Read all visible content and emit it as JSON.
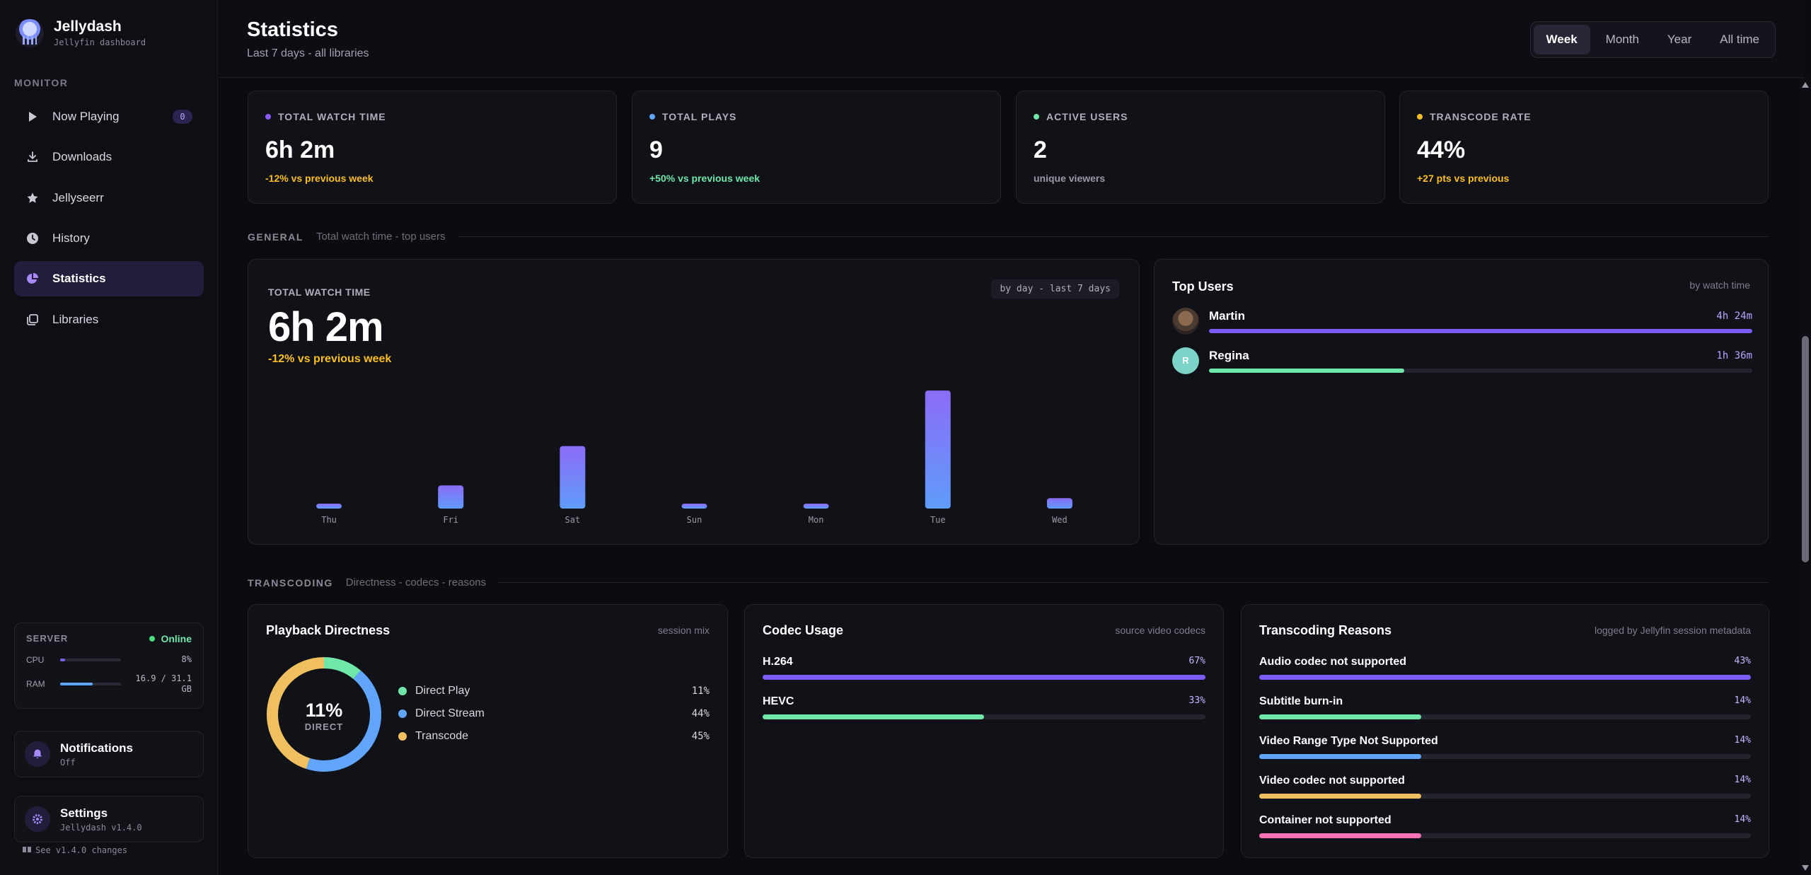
{
  "sidebar": {
    "brand_title": "Jellydash",
    "brand_sub": "Jellyfin dashboard",
    "section_label": "MONITOR",
    "items": [
      {
        "label": "Now Playing",
        "icon": "play-icon",
        "badge": "0"
      },
      {
        "label": "Downloads",
        "icon": "download-icon"
      },
      {
        "label": "Jellyseerr",
        "icon": "star-icon"
      },
      {
        "label": "History",
        "icon": "clock-icon"
      },
      {
        "label": "Statistics",
        "icon": "pie-chart-icon",
        "active": true
      },
      {
        "label": "Libraries",
        "icon": "library-icon"
      }
    ],
    "server": {
      "label": "SERVER",
      "status": "Online",
      "cpu_label": "CPU",
      "cpu_value": "8%",
      "cpu_fraction": 0.08,
      "ram_label": "RAM",
      "ram_value": "16.9 / 31.1 GB",
      "ram_fraction": 0.54
    },
    "notifications": {
      "title": "Notifications",
      "sub": "Off"
    },
    "settings": {
      "title": "Settings",
      "sub": "Jellydash v1.4.0"
    },
    "changes_link": "See v1.4.0 changes"
  },
  "header": {
    "title": "Statistics",
    "subtitle": "Last 7 days - all libraries",
    "ranges": [
      "Week",
      "Month",
      "Year",
      "All time"
    ],
    "active_range": "Week"
  },
  "stats": [
    {
      "label": "TOTAL WATCH TIME",
      "value": "6h 2m",
      "sub": "-12% vs previous week",
      "color": "#8b5cf6",
      "sub_color": "#fbbf24"
    },
    {
      "label": "TOTAL PLAYS",
      "value": "9",
      "sub": "+50% vs previous week",
      "color": "#60a5fa",
      "sub_color": "#6ee7a8"
    },
    {
      "label": "ACTIVE USERS",
      "value": "2",
      "sub": "unique viewers",
      "color": "#6ee7a8",
      "sub_color": "#9a9aa6"
    },
    {
      "label": "TRANSCODE RATE",
      "value": "44%",
      "sub": "+27 pts vs previous",
      "color": "#fbbf24",
      "sub_color": "#fbbf24"
    }
  ],
  "general": {
    "title": "GENERAL",
    "desc": "Total watch time - top users",
    "chart_label": "TOTAL WATCH TIME",
    "chip": "by day - last 7 days",
    "big": "6h 2m",
    "delta": "-12% vs previous week"
  },
  "chart_data": {
    "type": "bar",
    "title": "TOTAL WATCH TIME",
    "categories": [
      "Thu",
      "Fri",
      "Sat",
      "Sun",
      "Mon",
      "Tue",
      "Wed"
    ],
    "values": [
      4,
      20,
      54,
      4,
      4,
      102,
      9
    ],
    "ylim": [
      0,
      110
    ]
  },
  "top_users": {
    "title": "Top Users",
    "note": "by watch time",
    "users": [
      {
        "name": "Martin",
        "time": "4h 24m",
        "fraction": 1.0,
        "color": "#7c5cf6",
        "initial": ""
      },
      {
        "name": "Regina",
        "time": "1h 36m",
        "fraction": 0.36,
        "color": "#6ee7a8",
        "initial": "R"
      }
    ]
  },
  "transcoding": {
    "title": "TRANSCODING",
    "desc": "Directness - codecs - reasons"
  },
  "directness": {
    "title": "Playback Directness",
    "note": "session mix",
    "center_value": "11%",
    "center_label": "DIRECT",
    "items": [
      {
        "label": "Direct Play",
        "pct": "11%",
        "value": 11,
        "color": "#6ee7a8"
      },
      {
        "label": "Direct Stream",
        "pct": "44%",
        "value": 44,
        "color": "#60a5fa"
      },
      {
        "label": "Transcode",
        "pct": "45%",
        "value": 45,
        "color": "#f0c060"
      }
    ]
  },
  "codec": {
    "title": "Codec Usage",
    "note": "source video codecs",
    "items": [
      {
        "label": "H.264",
        "pct": "67%",
        "fraction": 1.0,
        "color": "#7c5cf6"
      },
      {
        "label": "HEVC",
        "pct": "33%",
        "fraction": 0.5,
        "color": "#6ee7a8"
      }
    ]
  },
  "reasons": {
    "title": "Transcoding Reasons",
    "note": "logged by Jellyfin session metadata",
    "items": [
      {
        "label": "Audio codec not supported",
        "pct": "43%",
        "fraction": 1.0,
        "color": "#7c5cf6"
      },
      {
        "label": "Subtitle burn-in",
        "pct": "14%",
        "fraction": 0.33,
        "color": "#6ee7a8"
      },
      {
        "label": "Video Range Type Not Supported",
        "pct": "14%",
        "fraction": 0.33,
        "color": "#60a5fa"
      },
      {
        "label": "Video codec not supported",
        "pct": "14%",
        "fraction": 0.33,
        "color": "#f0c060"
      },
      {
        "label": "Container not supported",
        "pct": "14%",
        "fraction": 0.33,
        "color": "#f472b6"
      }
    ]
  }
}
